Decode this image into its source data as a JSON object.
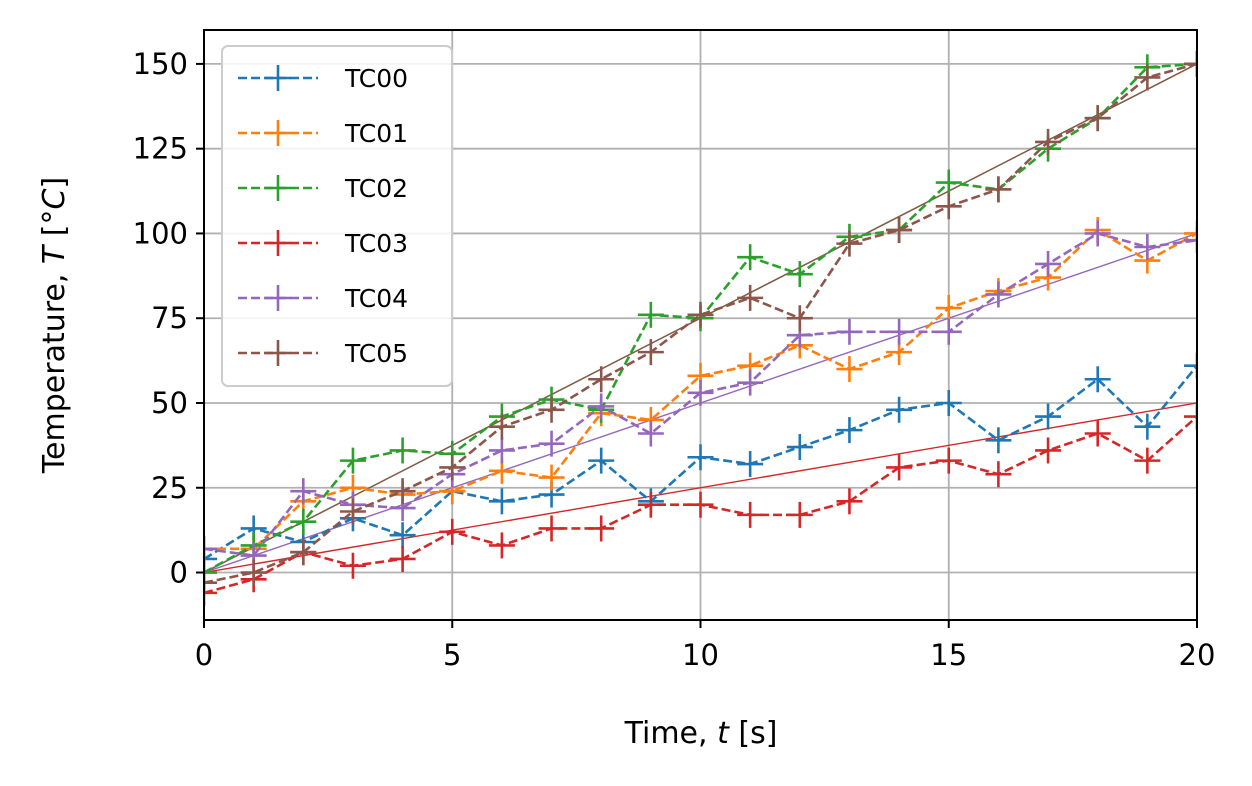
{
  "chart_data": {
    "type": "line",
    "xlabel_prefix": "Time, ",
    "xlabel_var": "t",
    "xlabel_suffix": " [s]",
    "ylabel_prefix": "Temperature, ",
    "ylabel_var": "T",
    "ylabel_suffix": " [°",
    "ylabel_unit": "C",
    "ylabel_close": "]",
    "xlim": [
      0,
      20
    ],
    "ylim": [
      -14,
      160
    ],
    "xticks": [
      0,
      5,
      10,
      15,
      20
    ],
    "yticks": [
      0,
      25,
      50,
      75,
      100,
      125,
      150
    ],
    "grid": true,
    "legend_position": "top-left",
    "x": [
      0,
      1,
      2,
      3,
      4,
      5,
      6,
      7,
      8,
      9,
      10,
      11,
      12,
      13,
      14,
      15,
      16,
      17,
      18,
      19,
      20
    ],
    "series": [
      {
        "name": "TC00",
        "color": "#1f77b4",
        "fit_slope": null,
        "values": [
          4,
          13,
          9,
          16,
          11,
          24,
          21,
          23,
          33,
          21,
          34,
          32,
          37,
          42,
          48,
          50,
          39,
          46,
          57,
          43,
          61
        ]
      },
      {
        "name": "TC01",
        "color": "#ff7f0e",
        "fit_slope": null,
        "values": [
          7,
          7,
          21,
          25,
          23,
          24,
          30,
          28,
          47,
          45,
          58,
          61,
          67,
          60,
          65,
          78,
          83,
          87,
          101,
          92,
          100
        ]
      },
      {
        "name": "TC02",
        "color": "#2ca02c",
        "fit_slope": 7.5,
        "values": [
          0,
          8,
          15,
          33,
          36,
          35,
          46,
          51,
          48,
          76,
          75,
          93,
          88,
          99,
          101,
          115,
          113,
          125,
          134,
          149,
          150
        ]
      },
      {
        "name": "TC03",
        "color": "#d62728",
        "fit_slope": 2.5,
        "values": [
          -6,
          -2,
          6,
          2,
          4,
          12,
          8,
          13,
          13,
          20,
          20,
          17,
          17,
          21,
          31,
          33,
          29,
          36,
          41,
          33,
          46
        ]
      },
      {
        "name": "TC04",
        "color": "#9467bd",
        "fit_slope": 5.0,
        "values": [
          7,
          5,
          24,
          20,
          19,
          29,
          36,
          38,
          49,
          41,
          53,
          56,
          70,
          71,
          71,
          71,
          82,
          91,
          100,
          96,
          98
        ]
      },
      {
        "name": "TC05",
        "color": "#8c564b",
        "fit_slope": 7.5,
        "values": [
          -3,
          0,
          6,
          18,
          24,
          31,
          43,
          48,
          57,
          65,
          76,
          81,
          75,
          97,
          101,
          108,
          113,
          127,
          134,
          146,
          150
        ]
      }
    ]
  }
}
